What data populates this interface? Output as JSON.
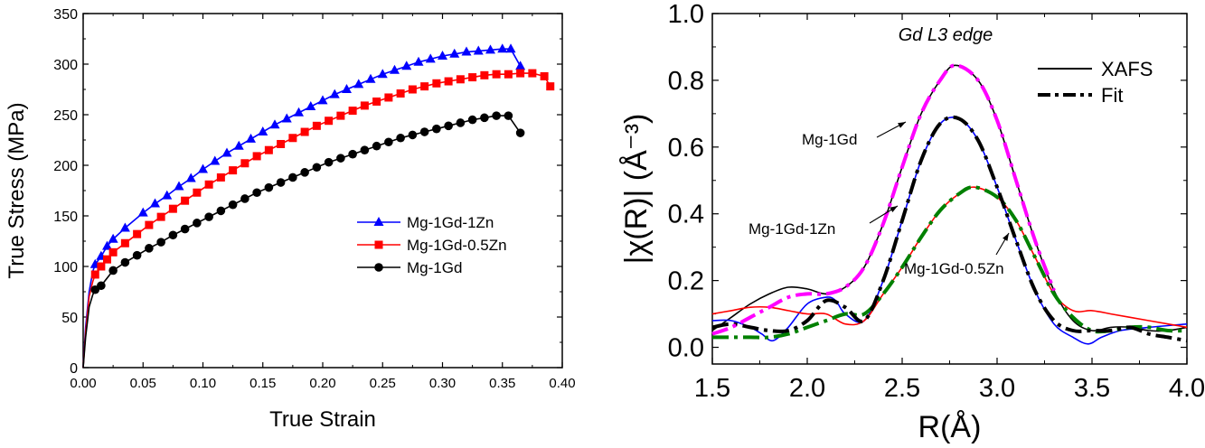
{
  "chart_data": [
    {
      "type": "line",
      "xlabel": "True Strain",
      "ylabel": "True Stress (MPa)",
      "xlim": [
        0,
        0.4
      ],
      "ylim": [
        0,
        350
      ],
      "xticks": [
        "0.00",
        "0.05",
        "0.10",
        "0.15",
        "0.20",
        "0.25",
        "0.30",
        "0.35",
        "0.40"
      ],
      "yticks": [
        "0",
        "50",
        "100",
        "150",
        "200",
        "250",
        "300",
        "350"
      ],
      "legend_position": "lower-right",
      "series": [
        {
          "name": "Mg-1Gd-1Zn",
          "color": "#0000ff",
          "marker": "triangle",
          "x": [
            0,
            0.002,
            0.005,
            0.008,
            0.01,
            0.015,
            0.02,
            0.025,
            0.035,
            0.05,
            0.06,
            0.07,
            0.08,
            0.09,
            0.1,
            0.11,
            0.12,
            0.13,
            0.14,
            0.15,
            0.16,
            0.17,
            0.18,
            0.19,
            0.2,
            0.21,
            0.22,
            0.23,
            0.24,
            0.25,
            0.26,
            0.27,
            0.28,
            0.29,
            0.3,
            0.31,
            0.32,
            0.33,
            0.34,
            0.35,
            0.357,
            0.365
          ],
          "y": [
            0,
            40,
            75,
            95,
            102,
            110,
            120,
            127,
            138,
            153,
            162,
            170,
            179,
            187,
            196,
            204,
            212,
            219,
            226,
            233,
            240,
            246,
            252,
            258,
            264,
            270,
            275,
            280,
            285,
            290,
            294,
            298,
            302,
            305,
            308,
            310,
            312,
            313,
            314,
            315,
            315,
            298
          ],
          "markers_from_index": 4
        },
        {
          "name": "Mg-1Gd-0.5Zn",
          "color": "#ff0000",
          "marker": "square",
          "x": [
            0,
            0.002,
            0.005,
            0.008,
            0.01,
            0.015,
            0.02,
            0.025,
            0.035,
            0.045,
            0.055,
            0.065,
            0.075,
            0.085,
            0.095,
            0.105,
            0.115,
            0.125,
            0.135,
            0.145,
            0.155,
            0.165,
            0.175,
            0.185,
            0.195,
            0.205,
            0.215,
            0.225,
            0.235,
            0.245,
            0.255,
            0.265,
            0.275,
            0.285,
            0.295,
            0.305,
            0.315,
            0.325,
            0.335,
            0.345,
            0.355,
            0.365,
            0.375,
            0.385,
            0.39
          ],
          "y": [
            0,
            35,
            70,
            85,
            92,
            100,
            107,
            114,
            123,
            132,
            141,
            149,
            157,
            165,
            173,
            181,
            188,
            195,
            202,
            209,
            215,
            221,
            227,
            233,
            239,
            244,
            249,
            254,
            259,
            263,
            267,
            271,
            275,
            278,
            281,
            283,
            285,
            287,
            289,
            290,
            290,
            291,
            291,
            288,
            278
          ],
          "markers_from_index": 4
        },
        {
          "name": "Mg-1Gd",
          "color": "#000000",
          "marker": "circle",
          "x": [
            0,
            0.002,
            0.005,
            0.008,
            0.01,
            0.015,
            0.025,
            0.035,
            0.045,
            0.055,
            0.065,
            0.075,
            0.085,
            0.095,
            0.105,
            0.115,
            0.125,
            0.135,
            0.145,
            0.155,
            0.165,
            0.175,
            0.185,
            0.195,
            0.205,
            0.215,
            0.225,
            0.235,
            0.245,
            0.255,
            0.265,
            0.275,
            0.285,
            0.295,
            0.305,
            0.315,
            0.325,
            0.335,
            0.345,
            0.355,
            0.365
          ],
          "y": [
            0,
            30,
            60,
            72,
            77,
            81,
            96,
            104,
            111,
            118,
            124,
            131,
            137,
            143,
            149,
            155,
            161,
            167,
            173,
            178,
            183,
            188,
            193,
            198,
            203,
            207,
            211,
            215,
            219,
            223,
            227,
            230,
            233,
            236,
            239,
            242,
            245,
            247,
            249,
            249,
            232
          ],
          "markers_from_index": 4
        }
      ]
    },
    {
      "type": "line",
      "title": "Gd L3 edge",
      "xlabel": "R(Å)",
      "ylabel": "|χ(R)| (Å⁻³)",
      "xlim": [
        1.5,
        4.0
      ],
      "ylim": [
        -0.05,
        1.0
      ],
      "xticks": [
        "1.5",
        "2.0",
        "2.5",
        "3.0",
        "3.5",
        "4.0"
      ],
      "yticks": [
        "0.0",
        "0.2",
        "0.4",
        "0.6",
        "0.8",
        "1.0"
      ],
      "legend_position": "top-right",
      "legend": [
        {
          "label": "XAFS",
          "style": "solid"
        },
        {
          "label": "Fit",
          "style": "dash-dot"
        }
      ],
      "annotations": [
        "Mg-1Gd",
        "Mg-1Gd-1Zn",
        "Mg-1Gd-0.5Zn"
      ],
      "series": [
        {
          "label": "Mg-1Gd XAFS",
          "color": "#000000",
          "style": "solid",
          "x": [
            1.5,
            1.6,
            1.7,
            1.8,
            1.9,
            2.0,
            2.1,
            2.2,
            2.3,
            2.4,
            2.5,
            2.6,
            2.7,
            2.78,
            2.9,
            3.0,
            3.1,
            3.2,
            3.3,
            3.4,
            3.5,
            3.6,
            3.7,
            3.8,
            3.9,
            4.0
          ],
          "y": [
            0.05,
            0.09,
            0.13,
            0.16,
            0.18,
            0.175,
            0.16,
            0.18,
            0.24,
            0.37,
            0.54,
            0.7,
            0.8,
            0.845,
            0.8,
            0.68,
            0.5,
            0.32,
            0.17,
            0.08,
            0.05,
            0.06,
            0.06,
            0.05,
            0.05,
            0.06
          ]
        },
        {
          "label": "Mg-1Gd Fit",
          "color": "#ff00ff",
          "style": "dash-dot",
          "x": [
            1.5,
            1.6,
            1.7,
            1.8,
            1.9,
            2.0,
            2.1,
            2.2,
            2.3,
            2.4,
            2.5,
            2.6,
            2.7,
            2.78,
            2.9,
            3.0,
            3.1,
            3.2,
            3.3
          ],
          "y": [
            0.04,
            0.06,
            0.09,
            0.12,
            0.15,
            0.16,
            0.16,
            0.18,
            0.24,
            0.37,
            0.54,
            0.7,
            0.8,
            0.845,
            0.8,
            0.68,
            0.5,
            0.32,
            0.17
          ]
        },
        {
          "label": "Mg-1Gd-1Zn XAFS",
          "color": "#0000ff",
          "style": "solid",
          "x": [
            1.5,
            1.6,
            1.7,
            1.76,
            1.82,
            1.9,
            2.0,
            2.1,
            2.15,
            2.2,
            2.3,
            2.4,
            2.5,
            2.6,
            2.7,
            2.8,
            2.9,
            3.0,
            3.1,
            3.2,
            3.3,
            3.4,
            3.48,
            3.55,
            3.65,
            3.8,
            4.0
          ],
          "y": [
            0.08,
            0.08,
            0.06,
            0.04,
            0.02,
            0.06,
            0.13,
            0.15,
            0.14,
            0.1,
            0.08,
            0.2,
            0.38,
            0.56,
            0.67,
            0.685,
            0.62,
            0.48,
            0.32,
            0.17,
            0.07,
            0.03,
            0.01,
            0.03,
            0.05,
            0.06,
            0.07
          ]
        },
        {
          "label": "Mg-1Gd-1Zn Fit",
          "color": "#000000",
          "style": "dash-dot",
          "x": [
            1.5,
            1.6,
            1.7,
            1.8,
            1.9,
            2.0,
            2.1,
            2.2,
            2.3,
            2.4,
            2.5,
            2.6,
            2.7,
            2.8,
            2.9,
            3.0,
            3.1,
            3.2,
            3.3,
            3.4,
            3.5,
            3.6,
            3.7,
            3.8,
            3.9,
            4.0
          ],
          "y": [
            0.06,
            0.07,
            0.06,
            0.05,
            0.05,
            0.08,
            0.14,
            0.12,
            0.08,
            0.2,
            0.38,
            0.56,
            0.67,
            0.685,
            0.62,
            0.48,
            0.32,
            0.17,
            0.08,
            0.05,
            0.05,
            0.05,
            0.06,
            0.04,
            0.03,
            0.02
          ]
        },
        {
          "label": "Mg-1Gd-0.5Zn XAFS",
          "color": "#ff0000",
          "style": "solid",
          "x": [
            1.5,
            1.6,
            1.7,
            1.8,
            1.9,
            2.0,
            2.1,
            2.2,
            2.3,
            2.4,
            2.5,
            2.6,
            2.7,
            2.8,
            2.88,
            3.0,
            3.1,
            3.2,
            3.3,
            3.4,
            3.5,
            3.6,
            3.7,
            3.8,
            3.9,
            4.0
          ],
          "y": [
            0.1,
            0.11,
            0.12,
            0.12,
            0.11,
            0.1,
            0.1,
            0.07,
            0.08,
            0.16,
            0.24,
            0.33,
            0.41,
            0.46,
            0.48,
            0.45,
            0.38,
            0.27,
            0.16,
            0.11,
            0.11,
            0.1,
            0.09,
            0.08,
            0.07,
            0.06
          ]
        },
        {
          "label": "Mg-1Gd-0.5Zn Fit",
          "color": "#008000",
          "style": "dash-dot",
          "x": [
            1.5,
            1.6,
            1.7,
            1.8,
            1.9,
            2.0,
            2.1,
            2.2,
            2.3,
            2.4,
            2.5,
            2.6,
            2.7,
            2.8,
            2.88,
            3.0,
            3.1,
            3.2,
            3.3,
            3.4,
            3.5,
            3.6,
            3.7,
            3.8,
            3.9,
            4.0
          ],
          "y": [
            0.03,
            0.03,
            0.03,
            0.03,
            0.04,
            0.06,
            0.08,
            0.1,
            0.1,
            0.16,
            0.24,
            0.33,
            0.41,
            0.46,
            0.48,
            0.45,
            0.38,
            0.27,
            0.16,
            0.09,
            0.05,
            0.05,
            0.06,
            0.06,
            0.05,
            0.05
          ]
        }
      ]
    }
  ]
}
